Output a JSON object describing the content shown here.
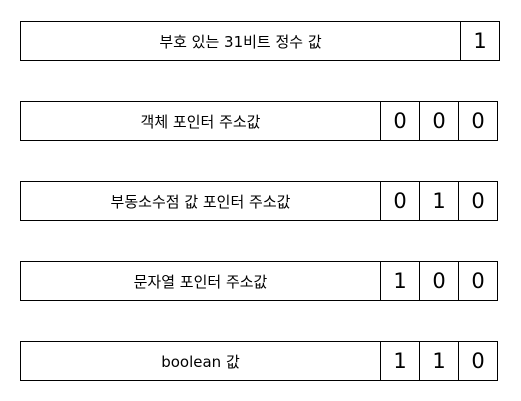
{
  "rows": [
    {
      "label": "부호 있는 31비트 정수 값",
      "bits": [
        "1"
      ]
    },
    {
      "label": "객체 포인터 주소값",
      "bits": [
        "0",
        "0",
        "0"
      ]
    },
    {
      "label": "부동소수점 값 포인터 주소값",
      "bits": [
        "0",
        "1",
        "0"
      ]
    },
    {
      "label": "문자열 포인터 주소값",
      "bits": [
        "1",
        "0",
        "0"
      ]
    },
    {
      "label": "boolean 값",
      "bits": [
        "1",
        "1",
        "0"
      ]
    }
  ]
}
